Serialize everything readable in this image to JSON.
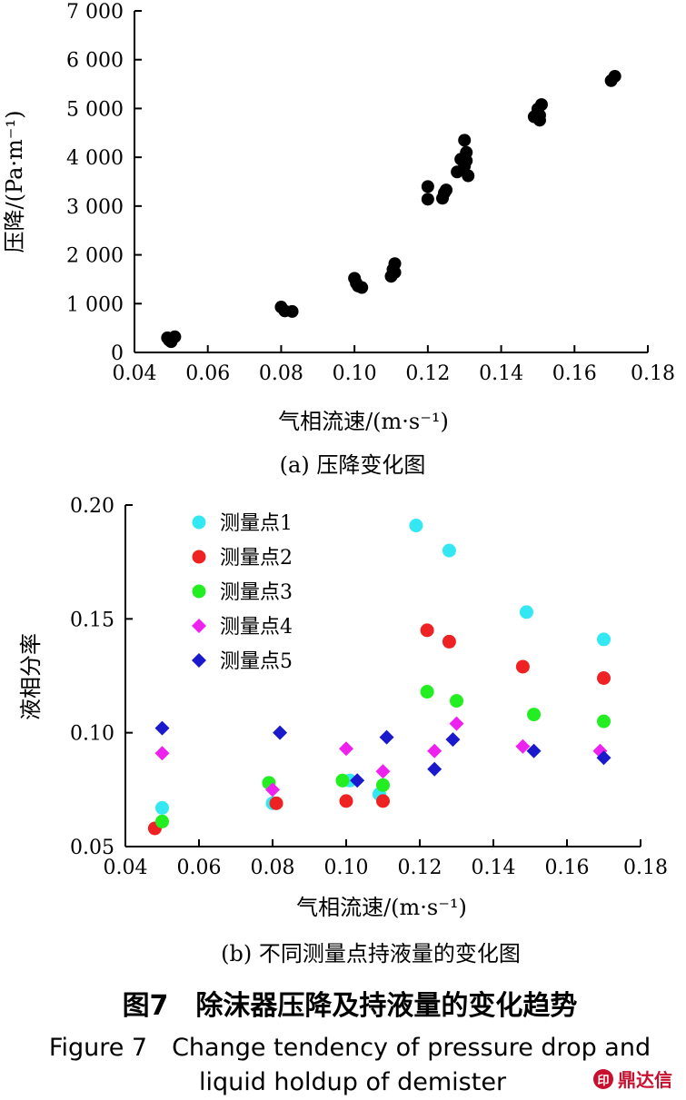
{
  "chart_data": [
    {
      "type": "scatter",
      "sub_caption": "(a) 压降变化图",
      "xlabel": "气相流速/(m·s⁻¹)",
      "ylabel": "压降/(Pa·m⁻¹)",
      "xlim": [
        0.04,
        0.18
      ],
      "ylim": [
        0,
        7000
      ],
      "x_ticks": [
        "0.04",
        "0.06",
        "0.08",
        "0.10",
        "0.12",
        "0.14",
        "0.16",
        "0.18"
      ],
      "y_ticks": [
        "0",
        "1 000",
        "2 000",
        "3 000",
        "4 000",
        "5 000",
        "6 000",
        "7 000"
      ],
      "grid": false,
      "series": [
        {
          "color": "#000000",
          "marker": "circle",
          "points": [
            [
              0.049,
              300
            ],
            [
              0.05,
              220
            ],
            [
              0.051,
              320
            ],
            [
              0.0495,
              250
            ],
            [
              0.08,
              930
            ],
            [
              0.081,
              850
            ],
            [
              0.083,
              840
            ],
            [
              0.1,
              1520
            ],
            [
              0.101,
              1360
            ],
            [
              0.102,
              1330
            ],
            [
              0.1005,
              1420
            ],
            [
              0.11,
              1560
            ],
            [
              0.1105,
              1700
            ],
            [
              0.111,
              1820
            ],
            [
              0.111,
              1640
            ],
            [
              0.12,
              3140
            ],
            [
              0.12,
              3400
            ],
            [
              0.124,
              3160
            ],
            [
              0.1245,
              3270
            ],
            [
              0.125,
              3330
            ],
            [
              0.128,
              3700
            ],
            [
              0.129,
              3960
            ],
            [
              0.13,
              4350
            ],
            [
              0.13,
              3820
            ],
            [
              0.1305,
              4100
            ],
            [
              0.131,
              3620
            ],
            [
              0.1305,
              3930
            ],
            [
              0.149,
              4830
            ],
            [
              0.15,
              4990
            ],
            [
              0.1505,
              4760
            ],
            [
              0.151,
              5080
            ],
            [
              0.1505,
              4860
            ],
            [
              0.17,
              5570
            ],
            [
              0.171,
              5660
            ]
          ]
        }
      ]
    },
    {
      "type": "scatter",
      "sub_caption": "(b) 不同测量点持液量的变化图",
      "xlabel": "气相流速/(m·s⁻¹)",
      "ylabel": "液相分率",
      "xlim": [
        0.04,
        0.18
      ],
      "ylim": [
        0.05,
        0.2
      ],
      "x_ticks": [
        "0.04",
        "0.06",
        "0.08",
        "0.10",
        "0.12",
        "0.14",
        "0.16",
        "0.18"
      ],
      "y_ticks": [
        "0.05",
        "0.10",
        "0.15",
        "0.20"
      ],
      "grid": false,
      "legend": "top-left",
      "series": [
        {
          "name": "测量点1",
          "color": "#33e8f2",
          "marker": "circle",
          "points": [
            [
              0.05,
              0.067
            ],
            [
              0.08,
              0.069
            ],
            [
              0.101,
              0.079
            ],
            [
              0.109,
              0.073
            ],
            [
              0.119,
              0.191
            ],
            [
              0.128,
              0.18
            ],
            [
              0.149,
              0.153
            ],
            [
              0.17,
              0.141
            ]
          ]
        },
        {
          "name": "测量点2",
          "color": "#ee2222",
          "marker": "circle",
          "points": [
            [
              0.048,
              0.058
            ],
            [
              0.081,
              0.069
            ],
            [
              0.1,
              0.07
            ],
            [
              0.11,
              0.07
            ],
            [
              0.122,
              0.145
            ],
            [
              0.128,
              0.14
            ],
            [
              0.148,
              0.129
            ],
            [
              0.17,
              0.124
            ]
          ]
        },
        {
          "name": "测量点3",
          "color": "#22ee22",
          "marker": "circle",
          "points": [
            [
              0.05,
              0.061
            ],
            [
              0.079,
              0.078
            ],
            [
              0.099,
              0.079
            ],
            [
              0.11,
              0.077
            ],
            [
              0.122,
              0.118
            ],
            [
              0.13,
              0.114
            ],
            [
              0.151,
              0.108
            ],
            [
              0.17,
              0.105
            ]
          ]
        },
        {
          "name": "测量点4",
          "color": "#ee22ee",
          "marker": "diamond",
          "points": [
            [
              0.05,
              0.091
            ],
            [
              0.08,
              0.075
            ],
            [
              0.1,
              0.093
            ],
            [
              0.11,
              0.083
            ],
            [
              0.124,
              0.092
            ],
            [
              0.13,
              0.104
            ],
            [
              0.148,
              0.094
            ],
            [
              0.169,
              0.092
            ]
          ]
        },
        {
          "name": "测量点5",
          "color": "#1a1acc",
          "marker": "diamond",
          "points": [
            [
              0.05,
              0.102
            ],
            [
              0.082,
              0.1
            ],
            [
              0.103,
              0.079
            ],
            [
              0.111,
              0.098
            ],
            [
              0.124,
              0.084
            ],
            [
              0.129,
              0.097
            ],
            [
              0.151,
              0.092
            ],
            [
              0.17,
              0.089
            ]
          ]
        }
      ]
    }
  ],
  "caption": {
    "cn": "图7　除沫器压降及持液量的变化趋势",
    "en_line1": "Figure 7　Change tendency of pressure drop and",
    "en_line2": "liquid holdup of demister"
  },
  "watermark": {
    "text": "鼎达信",
    "color": "#c8102e"
  }
}
